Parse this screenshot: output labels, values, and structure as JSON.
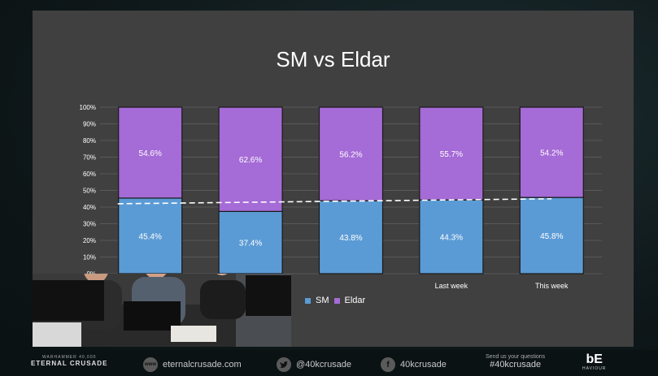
{
  "chart_data": {
    "type": "bar",
    "stacked": true,
    "title": "SM vs Eldar",
    "categories": [
      "",
      "",
      "",
      "Last week",
      "This week"
    ],
    "series": [
      {
        "name": "SM",
        "values": [
          45.4,
          37.4,
          43.8,
          44.3,
          45.8
        ],
        "labels": [
          "45.4%",
          "37.4%",
          "43.8%",
          "44.3%",
          "45.8%"
        ],
        "color": "#5b9bd5"
      },
      {
        "name": "Eldar",
        "values": [
          54.6,
          62.6,
          56.2,
          55.7,
          54.2
        ],
        "labels": [
          "54.6%",
          "62.6%",
          "56.2%",
          "55.7%",
          "54.2%"
        ],
        "color": "#a56bd6"
      }
    ],
    "yticks": [
      "0%",
      "10%",
      "20%",
      "30%",
      "40%",
      "50%",
      "60%",
      "70%",
      "80%",
      "90%",
      "100%"
    ],
    "ylim": [
      0,
      100
    ],
    "trendline": {
      "style": "dashed",
      "color": "#ffffff",
      "start": 42,
      "end": 45
    },
    "grid": true,
    "legend": "bottom-left"
  },
  "footer": {
    "logo_small": "WARHAMMER 40,000",
    "logo_big": "ETERNAL CRUSADE",
    "website": "eternalcrusade.com",
    "website_icon": "www",
    "twitter": "@40kcrusade",
    "twitter_icon": "twitter-bird",
    "facebook": "40kcrusade",
    "facebook_icon": "f",
    "questions_line1": "Send us your questions",
    "questions_line2": "#40kcrusade",
    "company_big": "bE",
    "company_small": "HAVIOUR"
  }
}
